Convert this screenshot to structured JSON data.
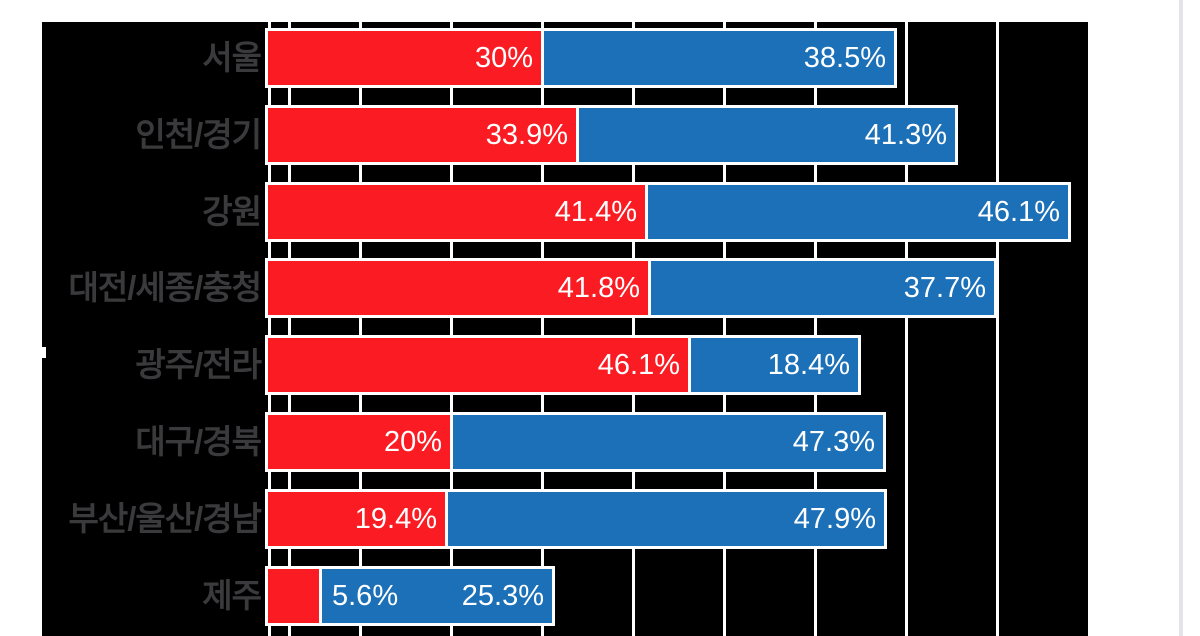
{
  "chart_data": {
    "type": "bar",
    "variant": "horizontal-stacked",
    "categories": [
      "서울",
      "인천/경기",
      "강원",
      "대전/세종/충청",
      "광주/전라",
      "대구/경북",
      "부산/울산/경남",
      "제주"
    ],
    "series": [
      {
        "name": "red-series",
        "color": "#fb1c23",
        "values": [
          30,
          33.9,
          41.4,
          41.8,
          46.1,
          20,
          19.4,
          5.6
        ],
        "labels": [
          "30%",
          "33.9%",
          "41.4%",
          "41.8%",
          "46.1%",
          "20%",
          "19.4%",
          "5.6%"
        ]
      },
      {
        "name": "blue-series",
        "color": "#1c70b8",
        "values": [
          38.5,
          41.3,
          46.1,
          37.7,
          18.4,
          47.3,
          47.9,
          25.3
        ],
        "labels": [
          "38.5%",
          "41.3%",
          "46.1%",
          "37.7%",
          "18.4%",
          "47.3%",
          "47.9%",
          "25.3%"
        ]
      }
    ],
    "xlim": [
      0,
      100
    ],
    "gridlines_pct": [
      0,
      2.2,
      10,
      20,
      30,
      40,
      50,
      60,
      70,
      80
    ],
    "outer_gridline_pct": 100,
    "legend": "none",
    "grid_on": true,
    "plot_background": "#000000",
    "page_background": "#ffffff",
    "grid_color": "#ffffff",
    "bar_border_color": "#ffffff",
    "category_label_color": "#3a3a3c",
    "value_label_color": "#ffffff"
  }
}
